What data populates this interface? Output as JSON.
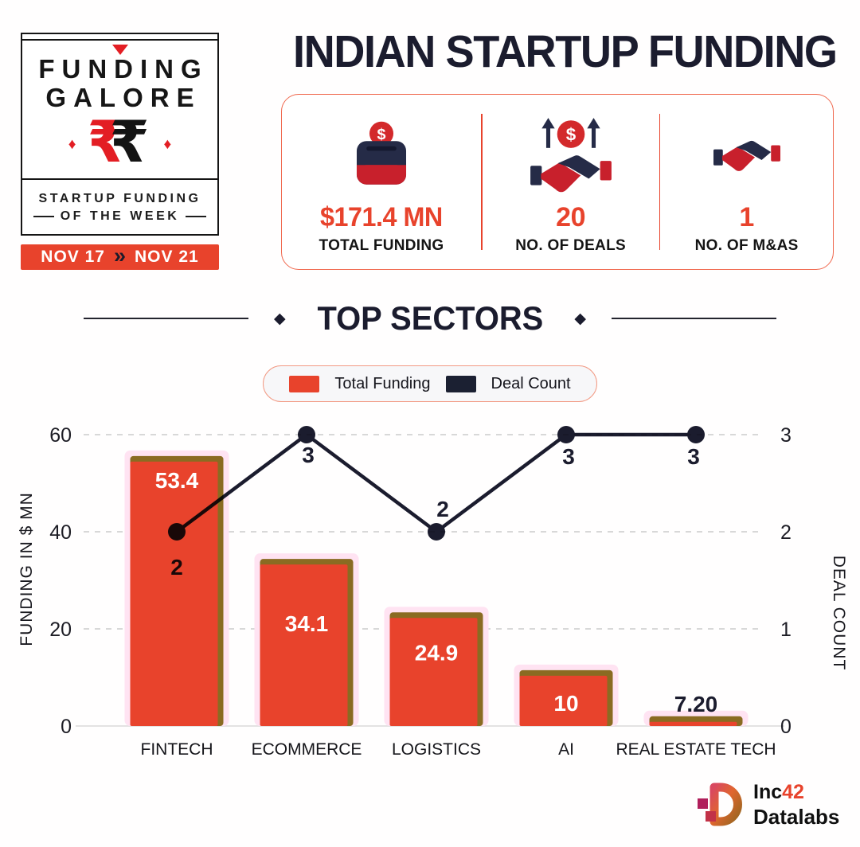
{
  "colors": {
    "accent": "#E8432C",
    "navy": "#1B1C2E",
    "red_bright": "#E31E24",
    "bar_glow": "#FFE3F2",
    "bar_edge": "#8A6B22",
    "grid": "#cccccc",
    "legend_border": "#f29a84"
  },
  "badge": {
    "title_line1": "FUNDING",
    "title_line2": "GALORE",
    "rupee_symbol": "₹",
    "diamond": "♦",
    "subtitle_line1": "STARTUP FUNDING",
    "subtitle_line2": "OF THE WEEK",
    "date_from": "NOV 17",
    "date_separator": "»",
    "date_to": "NOV 21"
  },
  "header": {
    "title": "INDIAN STARTUP FUNDING",
    "stats": [
      {
        "icon": "money-box-icon",
        "value": "$171.4 MN",
        "label": "TOTAL FUNDING"
      },
      {
        "icon": "deals-handshake-icon",
        "value": "20",
        "label": "NO. OF DEALS"
      },
      {
        "icon": "mna-handshake-icon",
        "value": "1",
        "label": "NO. OF M&AS"
      }
    ]
  },
  "section": {
    "title": "TOP SECTORS",
    "decor": "◆"
  },
  "legend": [
    {
      "label": "Total Funding",
      "color": "#E8432C"
    },
    {
      "label": "Deal Count",
      "color": "#1B2032"
    }
  ],
  "icons": {
    "dollar_glyph": "$"
  },
  "chart_data": {
    "type": "combo bar+line",
    "title": "TOP SECTORS",
    "categories": [
      "FINTECH",
      "ECOMMERCE",
      "LOGISTICS",
      "AI",
      "REAL ESTATE TECH"
    ],
    "series": [
      {
        "name": "Total Funding",
        "type": "bar",
        "axis": "left",
        "values": [
          53.4,
          34.1,
          24.9,
          10,
          7.2
        ],
        "labels": [
          "53.4",
          "34.1",
          "24.9",
          "10",
          "7.20"
        ]
      },
      {
        "name": "Deal Count",
        "type": "line",
        "axis": "right",
        "values": [
          2,
          3,
          2,
          3,
          3
        ],
        "labels": [
          "2",
          "3",
          "2",
          "3",
          "3"
        ]
      }
    ],
    "left_axis": {
      "title": "FUNDING IN $ MN",
      "range": [
        0,
        60
      ],
      "ticks": [
        0,
        20,
        40,
        60
      ]
    },
    "right_axis": {
      "title": "DEAL COUNT",
      "range": [
        0,
        3
      ],
      "ticks": [
        0,
        1,
        2,
        3
      ]
    },
    "grid": {
      "horizontal": true,
      "style": "dashed"
    },
    "legend_position": "top-center",
    "visual_bar_heights_units": [
      55.6,
      34.4,
      23.4,
      11.5,
      2.0
    ]
  },
  "footer": {
    "brand_prefix": "Inc",
    "brand_number": "42",
    "brand_name": "Datalabs"
  }
}
